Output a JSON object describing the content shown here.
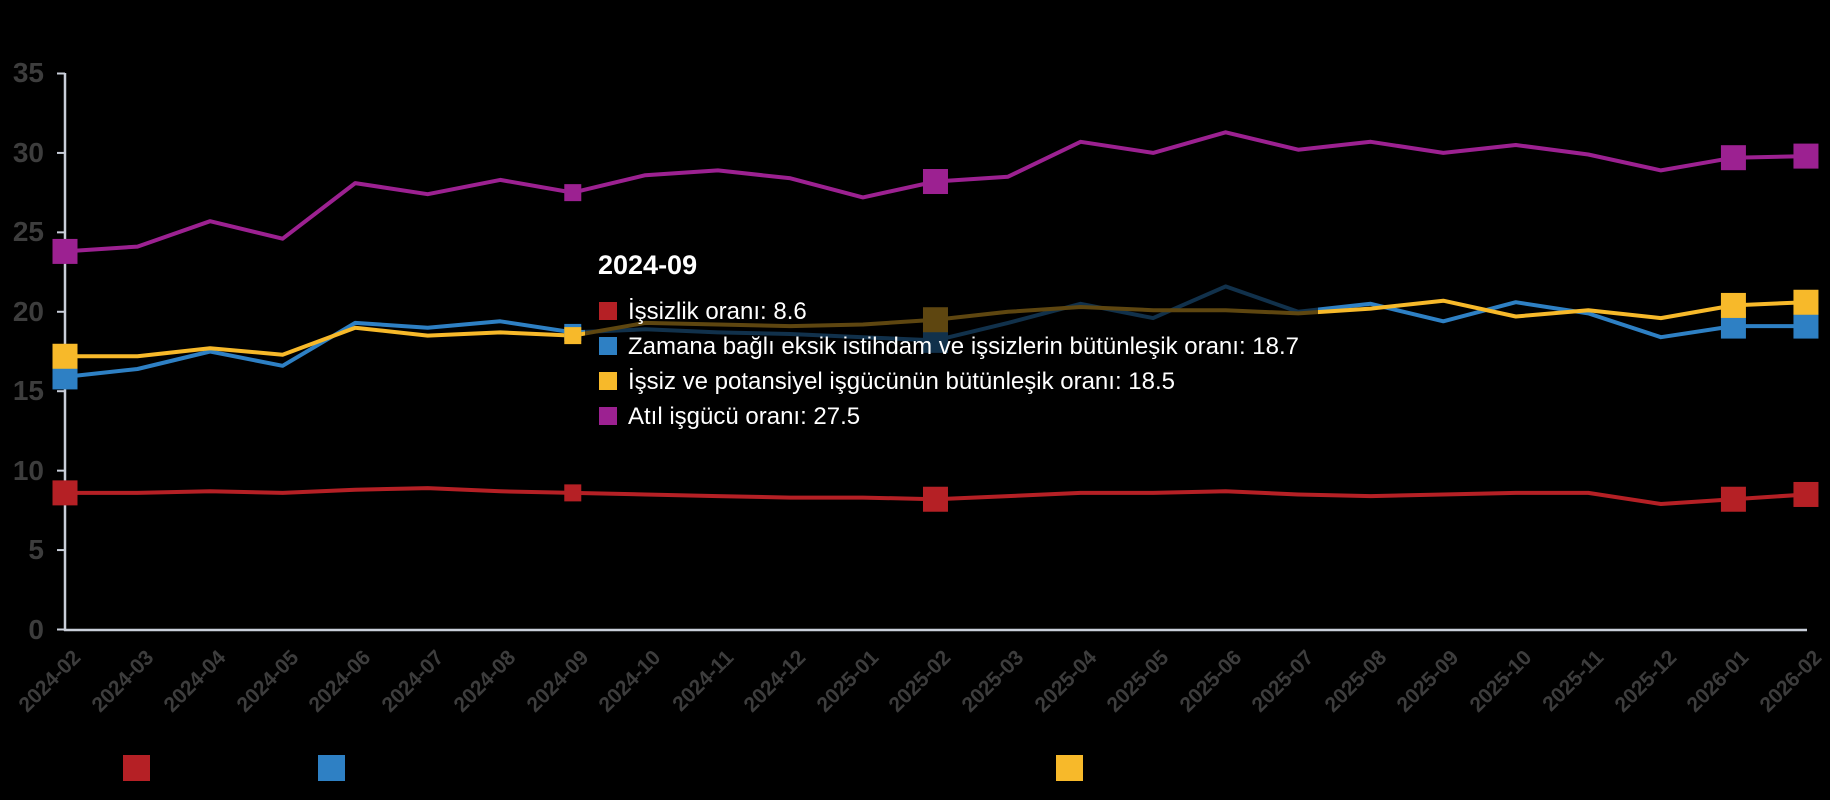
{
  "background": "#000000",
  "chart_data": {
    "type": "line",
    "title": "",
    "xlabel": "",
    "ylabel": "",
    "x": [
      "2024-02",
      "2024-03",
      "2024-04",
      "2024-05",
      "2024-06",
      "2024-07",
      "2024-08",
      "2024-09",
      "2024-10",
      "2024-11",
      "2024-12",
      "2025-01",
      "2025-02",
      "2025-03",
      "2025-04",
      "2025-05",
      "2025-06",
      "2025-07",
      "2025-08",
      "2025-09",
      "2025-10",
      "2025-11",
      "2025-12",
      "2026-01",
      "2026-02"
    ],
    "series": [
      {
        "name": "İşsizlik oranı",
        "color": "#b52025",
        "values": [
          8.6,
          8.6,
          8.7,
          8.6,
          8.8,
          8.9,
          8.7,
          8.6,
          8.5,
          8.4,
          8.3,
          8.3,
          8.2,
          8.4,
          8.6,
          8.6,
          8.7,
          8.5,
          8.4,
          8.5,
          8.6,
          8.6,
          7.9,
          8.2,
          8.5
        ]
      },
      {
        "name": "Zamana bağlı eksik istihdam ve işsizlerin bütünleşik oranı",
        "color": "#2e80c4",
        "values": [
          15.9,
          16.4,
          17.5,
          16.6,
          19.3,
          19.0,
          19.4,
          18.7,
          18.9,
          18.7,
          18.6,
          18.4,
          18.2,
          19.3,
          20.5,
          19.6,
          21.6,
          20.0,
          20.5,
          19.4,
          20.6,
          19.9,
          18.4,
          19.1,
          19.1
        ]
      },
      {
        "name": "İşsiz ve potansiyel işgücünün bütünleşik oranı",
        "color": "#f7b92a",
        "values": [
          17.2,
          17.2,
          17.7,
          17.3,
          19.0,
          18.5,
          18.7,
          18.5,
          19.3,
          19.2,
          19.1,
          19.2,
          19.5,
          20.0,
          20.3,
          20.1,
          20.1,
          19.9,
          20.2,
          20.7,
          19.7,
          20.1,
          19.6,
          20.4,
          20.6
        ]
      },
      {
        "name": "Atıl işgücü oranı",
        "color": "#9c2191",
        "values": [
          23.8,
          24.1,
          25.7,
          24.6,
          28.1,
          27.4,
          28.3,
          27.5,
          28.6,
          28.9,
          28.4,
          27.2,
          28.2,
          28.5,
          30.7,
          30.0,
          31.3,
          30.2,
          30.7,
          30.0,
          30.5,
          29.9,
          28.9,
          29.7,
          29.8
        ]
      }
    ],
    "ylim": [
      0,
      35
    ],
    "yticks": [
      0,
      5,
      10,
      15,
      20,
      25,
      30,
      35
    ],
    "x_label_rotation": -45,
    "grid": false,
    "legend_position": "bottom",
    "marker_point_labels": [
      "2024-02",
      "2025-02",
      "2026-01",
      "2026-02"
    ],
    "hovered_point": "2024-09",
    "axis_line_color": "#c9ced9",
    "axis_text_color": "#3d3d3d"
  },
  "tooltip": {
    "title": "2024-09",
    "rows": [
      {
        "swatch_color": "#b52025",
        "text": "İşsizlik oranı: 8.6"
      },
      {
        "swatch_color": "#2e80c4",
        "text": "Zamana bağlı eksik istihdam ve işsizlerin bütünleşik oranı: 18.7"
      },
      {
        "swatch_color": "#f7b92a",
        "text": "İşsiz ve potansiyel işgücünün bütünleşik oranı: 18.5"
      },
      {
        "swatch_color": "#9c2191",
        "text": "Atıl işgücü oranı: 27.5"
      }
    ]
  },
  "legend": {
    "label_color": "#000000",
    "items": [
      {
        "swatch_color": "#b52025",
        "label": "İşsizlik oranı"
      },
      {
        "swatch_color": "#2e80c4",
        "label": "Zamana bağlı eksik istihdam ve işsizlerin bütünleşik oranı"
      },
      {
        "swatch_color": "#f7b92a",
        "label": "İşsiz ve potansiyel işgücünün bütünleşik oranı"
      }
    ]
  }
}
